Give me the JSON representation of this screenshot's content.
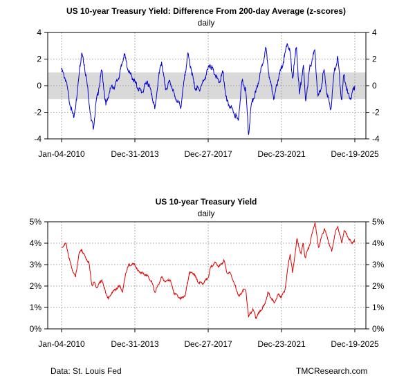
{
  "chart_data": [
    {
      "type": "line",
      "title": "US 10-year Treasury Yield: Difference From 200-day Average (z-scores)",
      "subtitle": "daily",
      "x_tick_labels": [
        "Jan-04-2010",
        "Dec-31-2013",
        "Dec-27-2017",
        "Dec-23-2021",
        "Dec-19-2025"
      ],
      "xlim": [
        "2010-01-04",
        "2025-12-19"
      ],
      "y_ticks": [
        -4,
        -2,
        0,
        2,
        4
      ],
      "ylim": [
        -4,
        4
      ],
      "band": [
        -1,
        1
      ],
      "band_color": "#d9d9d9",
      "grid": true,
      "series": [
        {
          "color": "#0000cc",
          "points": [
            [
              "2010-01-04",
              1.2
            ],
            [
              "2010-04-01",
              0.4
            ],
            [
              "2010-07-01",
              -1.6
            ],
            [
              "2010-09-01",
              -2.4
            ],
            [
              "2010-11-01",
              -1.0
            ],
            [
              "2011-01-01",
              1.5
            ],
            [
              "2011-02-15",
              2.4
            ],
            [
              "2011-04-01",
              1.6
            ],
            [
              "2011-06-01",
              0.0
            ],
            [
              "2011-08-15",
              -2.6
            ],
            [
              "2011-10-01",
              -3.2
            ],
            [
              "2011-11-15",
              -1.4
            ],
            [
              "2012-01-15",
              -0.2
            ],
            [
              "2012-03-15",
              1.2
            ],
            [
              "2012-06-01",
              -1.5
            ],
            [
              "2012-09-01",
              -0.2
            ],
            [
              "2012-12-01",
              0.0
            ],
            [
              "2013-03-01",
              0.8
            ],
            [
              "2013-06-01",
              2.4
            ],
            [
              "2013-09-01",
              1.0
            ],
            [
              "2013-12-01",
              0.5
            ],
            [
              "2014-03-01",
              -0.2
            ],
            [
              "2014-06-01",
              -0.5
            ],
            [
              "2014-09-01",
              0.4
            ],
            [
              "2014-12-01",
              -0.6
            ],
            [
              "2015-02-01",
              -1.8
            ],
            [
              "2015-04-15",
              0.6
            ],
            [
              "2015-06-15",
              1.8
            ],
            [
              "2015-09-01",
              -0.3
            ],
            [
              "2015-12-01",
              0.3
            ],
            [
              "2016-03-01",
              -0.8
            ],
            [
              "2016-07-01",
              -1.6
            ],
            [
              "2016-11-15",
              2.4
            ],
            [
              "2017-01-15",
              1.4
            ],
            [
              "2017-04-01",
              -0.1
            ],
            [
              "2017-07-01",
              -0.3
            ],
            [
              "2017-10-01",
              0.4
            ],
            [
              "2018-02-01",
              1.6
            ],
            [
              "2018-05-15",
              0.8
            ],
            [
              "2018-08-01",
              0.2
            ],
            [
              "2018-10-15",
              1.0
            ],
            [
              "2019-01-01",
              -1.2
            ],
            [
              "2019-03-15",
              -1.6
            ],
            [
              "2019-05-15",
              -2.0
            ],
            [
              "2019-08-15",
              -2.6
            ],
            [
              "2019-11-01",
              0.4
            ],
            [
              "2020-01-15",
              -0.4
            ],
            [
              "2020-03-09",
              -3.7
            ],
            [
              "2020-05-01",
              -1.4
            ],
            [
              "2020-08-01",
              -0.5
            ],
            [
              "2020-11-01",
              1.0
            ],
            [
              "2021-02-15",
              2.8
            ],
            [
              "2021-05-01",
              0.5
            ],
            [
              "2021-08-01",
              -1.0
            ],
            [
              "2021-10-15",
              0.5
            ],
            [
              "2022-02-01",
              1.8
            ],
            [
              "2022-04-15",
              3.2
            ],
            [
              "2022-06-15",
              2.4
            ],
            [
              "2022-08-01",
              0.5
            ],
            [
              "2022-10-15",
              3.0
            ],
            [
              "2022-12-15",
              -0.7
            ],
            [
              "2023-03-01",
              1.6
            ],
            [
              "2023-04-15",
              -1.2
            ],
            [
              "2023-07-01",
              1.2
            ],
            [
              "2023-10-15",
              2.7
            ],
            [
              "2023-12-15",
              -0.8
            ],
            [
              "2024-02-01",
              -0.5
            ],
            [
              "2024-04-15",
              1.2
            ],
            [
              "2024-06-15",
              -0.6
            ],
            [
              "2024-09-01",
              -1.8
            ],
            [
              "2024-11-01",
              1.0
            ],
            [
              "2025-01-15",
              2.1
            ],
            [
              "2025-04-01",
              -1.2
            ],
            [
              "2025-05-15",
              0.9
            ],
            [
              "2025-08-01",
              -0.6
            ],
            [
              "2025-10-01",
              -0.9
            ],
            [
              "2025-12-19",
              0.0
            ]
          ]
        }
      ]
    },
    {
      "type": "line",
      "title": "US 10-year Treasury Yield",
      "subtitle": "daily",
      "x_tick_labels": [
        "Jan-04-2010",
        "Dec-31-2013",
        "Dec-27-2017",
        "Dec-23-2021",
        "Dec-19-2025"
      ],
      "xlim": [
        "2010-01-04",
        "2025-12-19"
      ],
      "y_ticks": [
        0,
        1,
        2,
        3,
        4,
        5
      ],
      "y_tick_labels": [
        "0%",
        "1%",
        "2%",
        "3%",
        "4%",
        "5%"
      ],
      "ylim": [
        0,
        5
      ],
      "grid": true,
      "series": [
        {
          "color": "#dd0000",
          "points": [
            [
              "2010-01-04",
              3.8
            ],
            [
              "2010-04-05",
              4.0
            ],
            [
              "2010-06-01",
              3.3
            ],
            [
              "2010-08-01",
              2.8
            ],
            [
              "2010-10-08",
              2.4
            ],
            [
              "2010-12-15",
              3.5
            ],
            [
              "2011-02-08",
              3.7
            ],
            [
              "2011-05-01",
              3.3
            ],
            [
              "2011-07-01",
              3.1
            ],
            [
              "2011-09-01",
              2.0
            ],
            [
              "2011-10-15",
              2.2
            ],
            [
              "2011-12-01",
              1.9
            ],
            [
              "2012-03-15",
              2.3
            ],
            [
              "2012-05-01",
              1.9
            ],
            [
              "2012-07-24",
              1.4
            ],
            [
              "2012-10-01",
              1.7
            ],
            [
              "2013-01-01",
              1.9
            ],
            [
              "2013-03-15",
              2.0
            ],
            [
              "2013-05-01",
              1.7
            ],
            [
              "2013-07-01",
              2.6
            ],
            [
              "2013-09-05",
              3.0
            ],
            [
              "2013-12-31",
              3.0
            ],
            [
              "2014-03-01",
              2.7
            ],
            [
              "2014-06-01",
              2.6
            ],
            [
              "2014-09-01",
              2.5
            ],
            [
              "2014-12-01",
              2.2
            ],
            [
              "2015-02-01",
              1.7
            ],
            [
              "2015-06-15",
              2.4
            ],
            [
              "2015-09-01",
              2.2
            ],
            [
              "2015-12-01",
              2.3
            ],
            [
              "2016-02-11",
              1.7
            ],
            [
              "2016-07-08",
              1.4
            ],
            [
              "2016-10-01",
              1.6
            ],
            [
              "2016-12-15",
              2.6
            ],
            [
              "2017-03-15",
              2.6
            ],
            [
              "2017-06-01",
              2.2
            ],
            [
              "2017-09-08",
              2.1
            ],
            [
              "2017-12-27",
              2.4
            ],
            [
              "2018-02-15",
              2.9
            ],
            [
              "2018-05-17",
              3.1
            ],
            [
              "2018-08-01",
              2.9
            ],
            [
              "2018-11-08",
              3.2
            ],
            [
              "2019-01-03",
              2.6
            ],
            [
              "2019-03-15",
              2.6
            ],
            [
              "2019-06-01",
              2.1
            ],
            [
              "2019-09-03",
              1.5
            ],
            [
              "2019-11-15",
              1.8
            ],
            [
              "2020-01-15",
              1.8
            ],
            [
              "2020-03-09",
              0.54
            ],
            [
              "2020-04-01",
              0.7
            ],
            [
              "2020-06-08",
              0.9
            ],
            [
              "2020-08-04",
              0.52
            ],
            [
              "2020-11-01",
              0.85
            ],
            [
              "2021-01-15",
              1.1
            ],
            [
              "2021-03-31",
              1.7
            ],
            [
              "2021-08-01",
              1.2
            ],
            [
              "2021-10-15",
              1.6
            ],
            [
              "2021-12-23",
              1.5
            ],
            [
              "2022-03-01",
              1.8
            ],
            [
              "2022-05-01",
              2.9
            ],
            [
              "2022-06-14",
              3.5
            ],
            [
              "2022-08-01",
              2.6
            ],
            [
              "2022-10-24",
              4.2
            ],
            [
              "2023-01-15",
              3.5
            ],
            [
              "2023-03-01",
              4.0
            ],
            [
              "2023-04-06",
              3.3
            ],
            [
              "2023-07-01",
              3.9
            ],
            [
              "2023-10-19",
              5.0
            ],
            [
              "2023-12-27",
              3.8
            ],
            [
              "2024-04-25",
              4.7
            ],
            [
              "2024-06-01",
              4.4
            ],
            [
              "2024-09-16",
              3.6
            ],
            [
              "2024-11-15",
              4.4
            ],
            [
              "2025-01-14",
              4.8
            ],
            [
              "2025-04-04",
              4.0
            ],
            [
              "2025-05-21",
              4.6
            ],
            [
              "2025-08-01",
              4.3
            ],
            [
              "2025-10-15",
              4.0
            ],
            [
              "2025-12-19",
              4.15
            ]
          ]
        }
      ]
    }
  ],
  "footer": {
    "source": "Data: St. Louis Fed",
    "credit": "TMCResearch.com"
  }
}
